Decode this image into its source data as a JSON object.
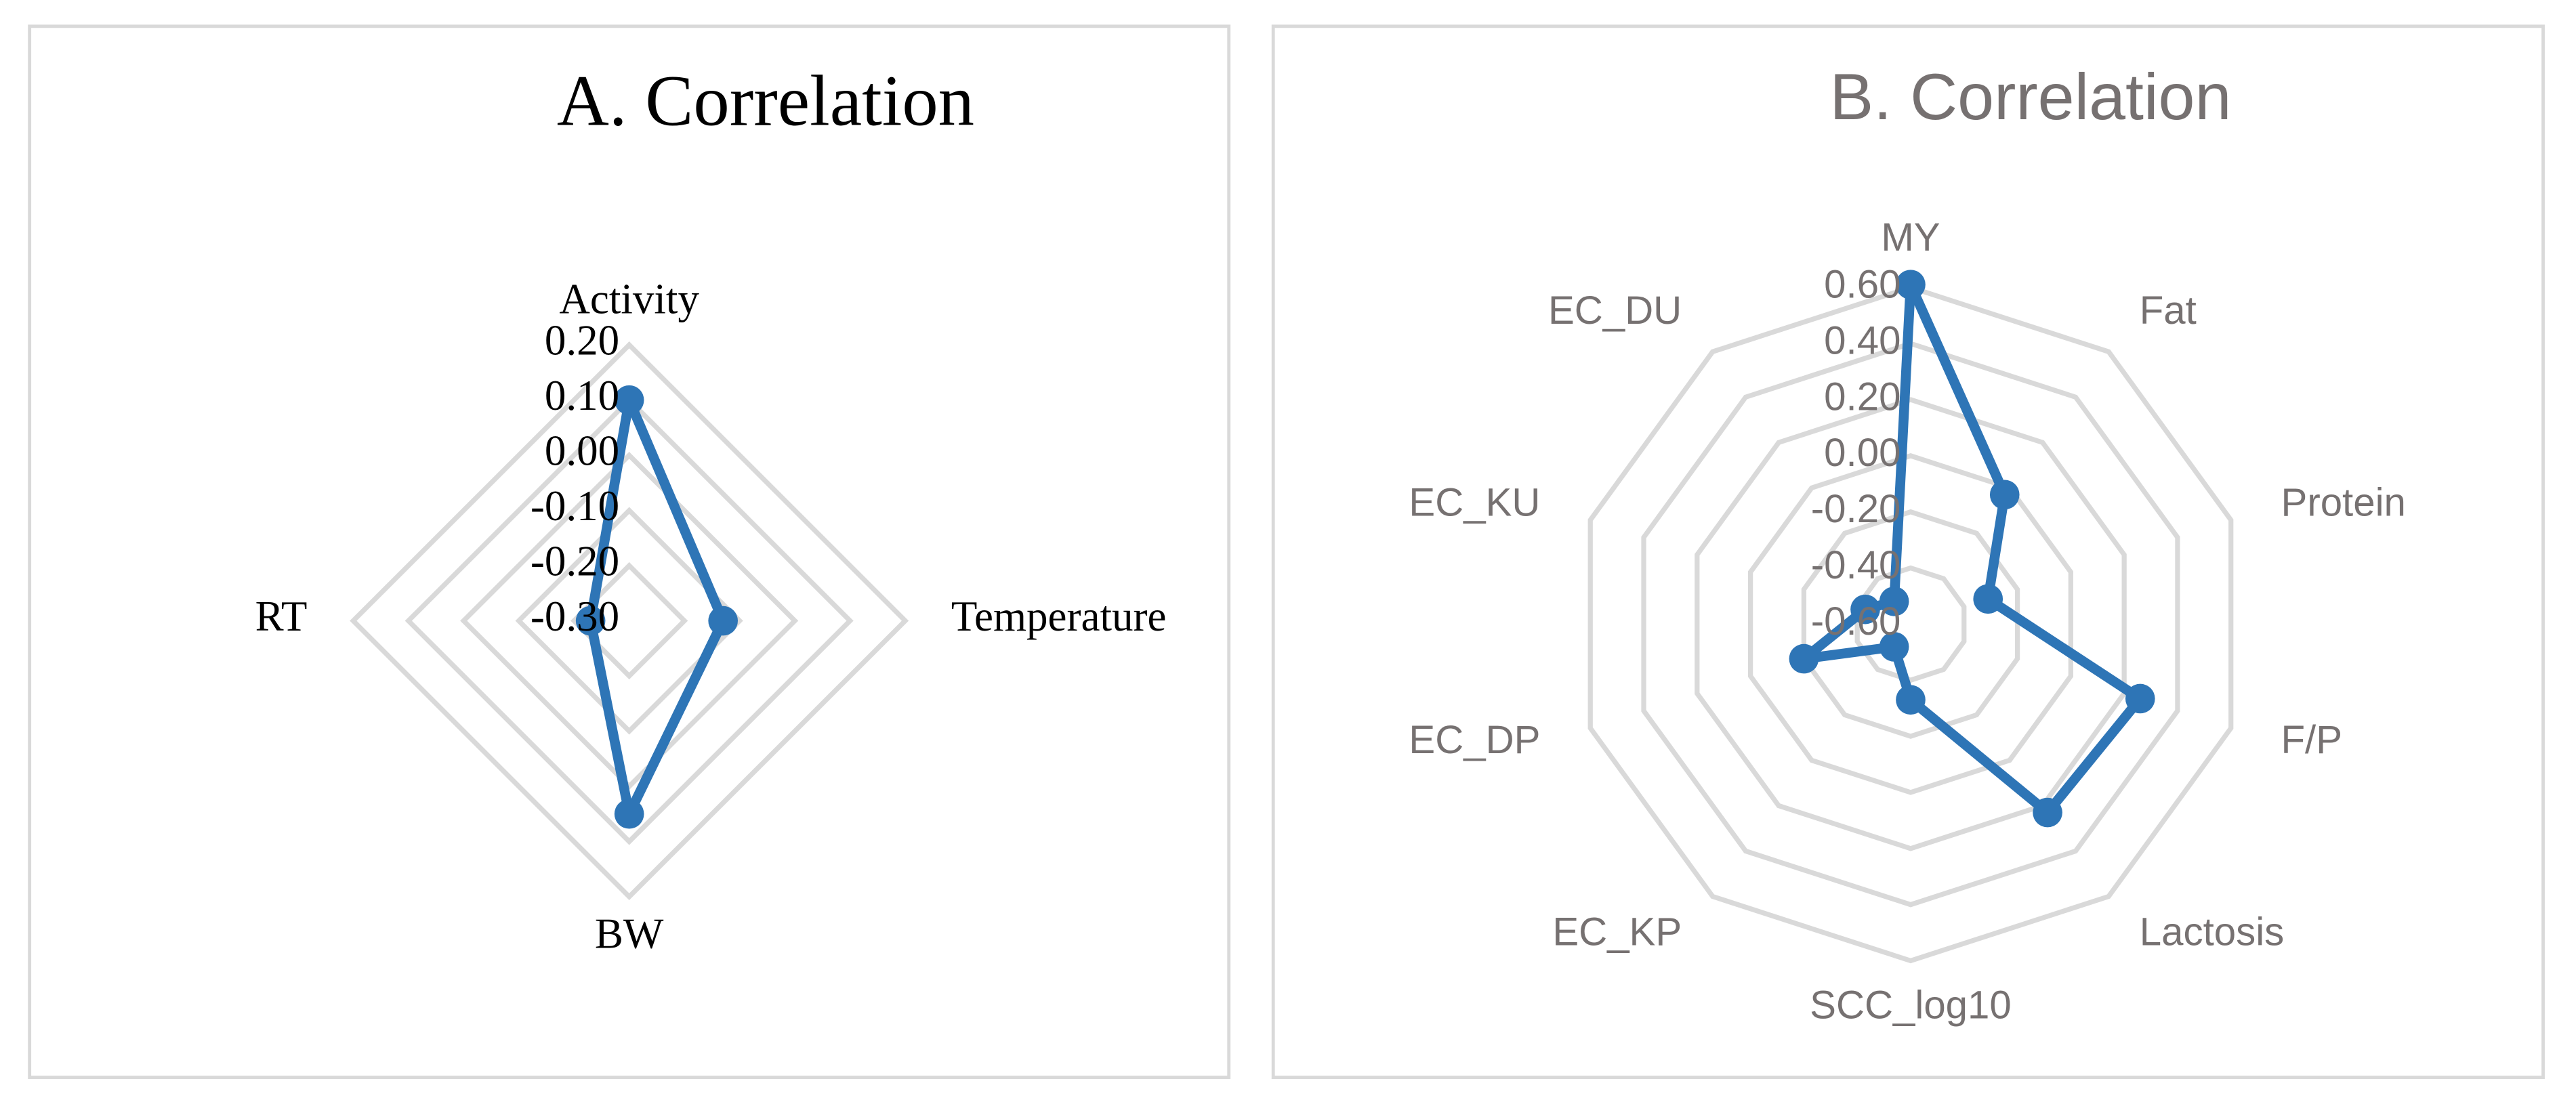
{
  "chart_data": [
    {
      "type": "radar",
      "title": "A. Correlation",
      "categories": [
        "Activity",
        "Temperature",
        "BW",
        "RT"
      ],
      "values": [
        0.1,
        -0.13,
        0.05,
        -0.23
      ],
      "color": "#2e75b6",
      "rlim": [
        -0.3,
        0.2
      ],
      "rticks": [
        {
          "value": -0.3,
          "label": "-0.30"
        },
        {
          "value": -0.2,
          "label": "-0.20"
        },
        {
          "value": -0.1,
          "label": "-0.10"
        },
        {
          "value": 0.0,
          "label": "0.00"
        },
        {
          "value": 0.1,
          "label": "0.10"
        },
        {
          "value": 0.2,
          "label": "0.20"
        }
      ],
      "grid": true
    },
    {
      "type": "radar",
      "title": "B. Correlation",
      "categories": [
        "MY",
        "Fat",
        "Protein",
        "F/P",
        "Lactosis",
        "SCC_log10",
        "EC_KP",
        "EC_DP",
        "EC_KU",
        "EC_DU"
      ],
      "values": [
        0.61,
        -0.03,
        -0.31,
        0.26,
        0.23,
        -0.33,
        -0.5,
        -0.2,
        -0.43,
        -0.5
      ],
      "color": "#2e75b6",
      "rlim": [
        -0.6,
        0.6
      ],
      "rticks": [
        {
          "value": -0.6,
          "label": "-0.60"
        },
        {
          "value": -0.4,
          "label": "-0.40"
        },
        {
          "value": -0.2,
          "label": "-0.20"
        },
        {
          "value": 0.0,
          "label": "0.00"
        },
        {
          "value": 0.2,
          "label": "0.20"
        },
        {
          "value": 0.4,
          "label": "0.40"
        },
        {
          "value": 0.6,
          "label": "0.60"
        }
      ],
      "grid": true
    }
  ]
}
